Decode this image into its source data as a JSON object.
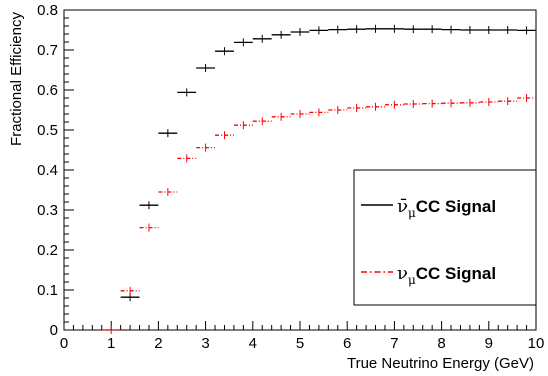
{
  "chart_data": {
    "type": "scatter",
    "xlabel": "True Neutrino Energy (GeV)",
    "ylabel": "Fractional Efficiency",
    "xlim": [
      0,
      10
    ],
    "ylim": [
      0,
      0.8
    ],
    "x_ticks": [
      "0",
      "1",
      "2",
      "3",
      "4",
      "5",
      "6",
      "7",
      "8",
      "9",
      "10"
    ],
    "y_ticks": [
      "0",
      "0.1",
      "0.2",
      "0.3",
      "0.4",
      "0.5",
      "0.6",
      "0.7",
      "0.8"
    ],
    "grid": false,
    "legend_position": "right",
    "bin_width": 0.4,
    "series": [
      {
        "name": "ν̄μCC Signal",
        "name_symbol": "ν̄",
        "name_sub": "μ",
        "name_text": "CC Signal",
        "color": "#000000",
        "line_style": "solid",
        "x": [
          1.4,
          1.8,
          2.2,
          2.6,
          3.0,
          3.4,
          3.8,
          4.2,
          4.6,
          5.0,
          5.4,
          5.8,
          6.2,
          6.6,
          7.0,
          7.4,
          7.8,
          8.2,
          8.6,
          9.0,
          9.4,
          9.8
        ],
        "y": [
          0.082,
          0.312,
          0.492,
          0.594,
          0.655,
          0.697,
          0.719,
          0.728,
          0.738,
          0.745,
          0.749,
          0.751,
          0.752,
          0.753,
          0.753,
          0.752,
          0.752,
          0.751,
          0.75,
          0.75,
          0.75,
          0.749
        ]
      },
      {
        "name": "νμCC Signal",
        "name_symbol": "ν",
        "name_sub": "μ",
        "name_text": "CC Signal",
        "color": "#ff0000",
        "line_style": "dashdot",
        "x": [
          1.0,
          1.4,
          1.8,
          2.2,
          2.6,
          3.0,
          3.4,
          3.8,
          4.2,
          4.6,
          5.0,
          5.4,
          5.8,
          6.2,
          6.6,
          7.0,
          7.4,
          7.8,
          8.2,
          8.6,
          9.0,
          9.4,
          9.8
        ],
        "y": [
          0.0,
          0.098,
          0.256,
          0.345,
          0.429,
          0.456,
          0.487,
          0.512,
          0.522,
          0.533,
          0.54,
          0.544,
          0.55,
          0.555,
          0.558,
          0.563,
          0.565,
          0.566,
          0.567,
          0.568,
          0.57,
          0.572,
          0.58
        ]
      }
    ]
  }
}
